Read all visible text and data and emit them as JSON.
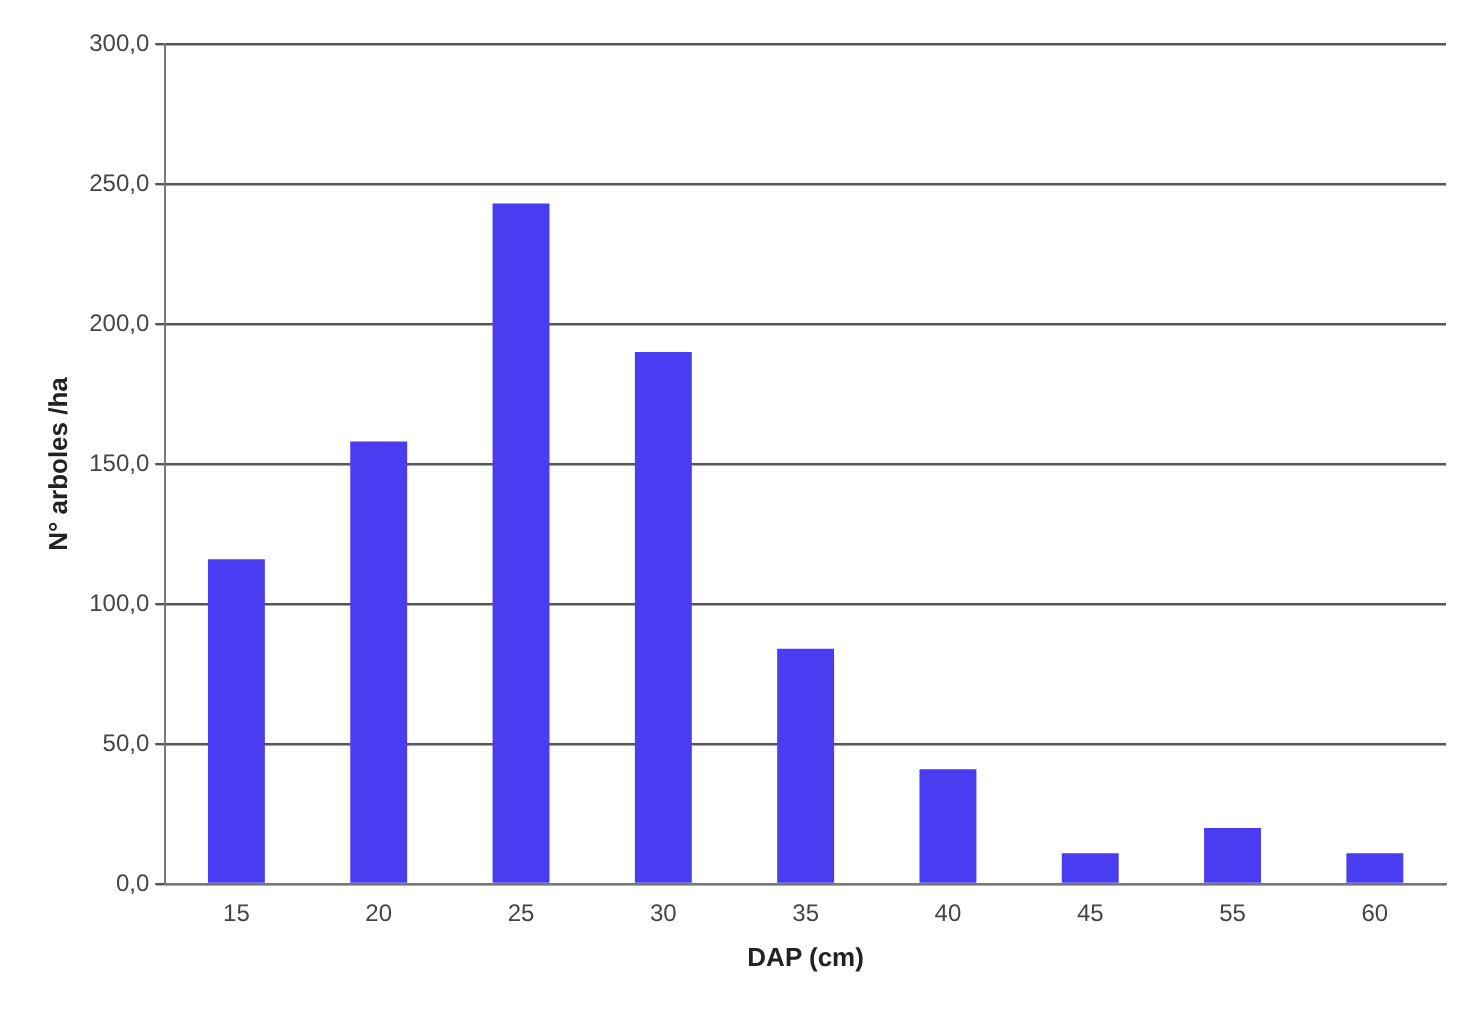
{
  "chart_data": {
    "type": "bar",
    "xlabel": "DAP (cm)",
    "ylabel": "N° arboles /ha",
    "categories": [
      "15",
      "20",
      "25",
      "30",
      "35",
      "40",
      "45",
      "55",
      "60"
    ],
    "values": [
      116,
      158,
      243,
      190,
      84,
      41,
      11,
      20,
      11
    ],
    "color": "#4a3cf0",
    "ylim": [
      0,
      300
    ],
    "yticks": [
      {
        "value": 0,
        "label": "0,0"
      },
      {
        "value": 50,
        "label": "50,0"
      },
      {
        "value": 100,
        "label": "100,0"
      },
      {
        "value": 150,
        "label": "150,0"
      },
      {
        "value": 200,
        "label": "200,0"
      },
      {
        "value": 250,
        "label": "250,0"
      },
      {
        "value": 300,
        "label": "300,0"
      }
    ],
    "grid": "y",
    "legend": false
  }
}
